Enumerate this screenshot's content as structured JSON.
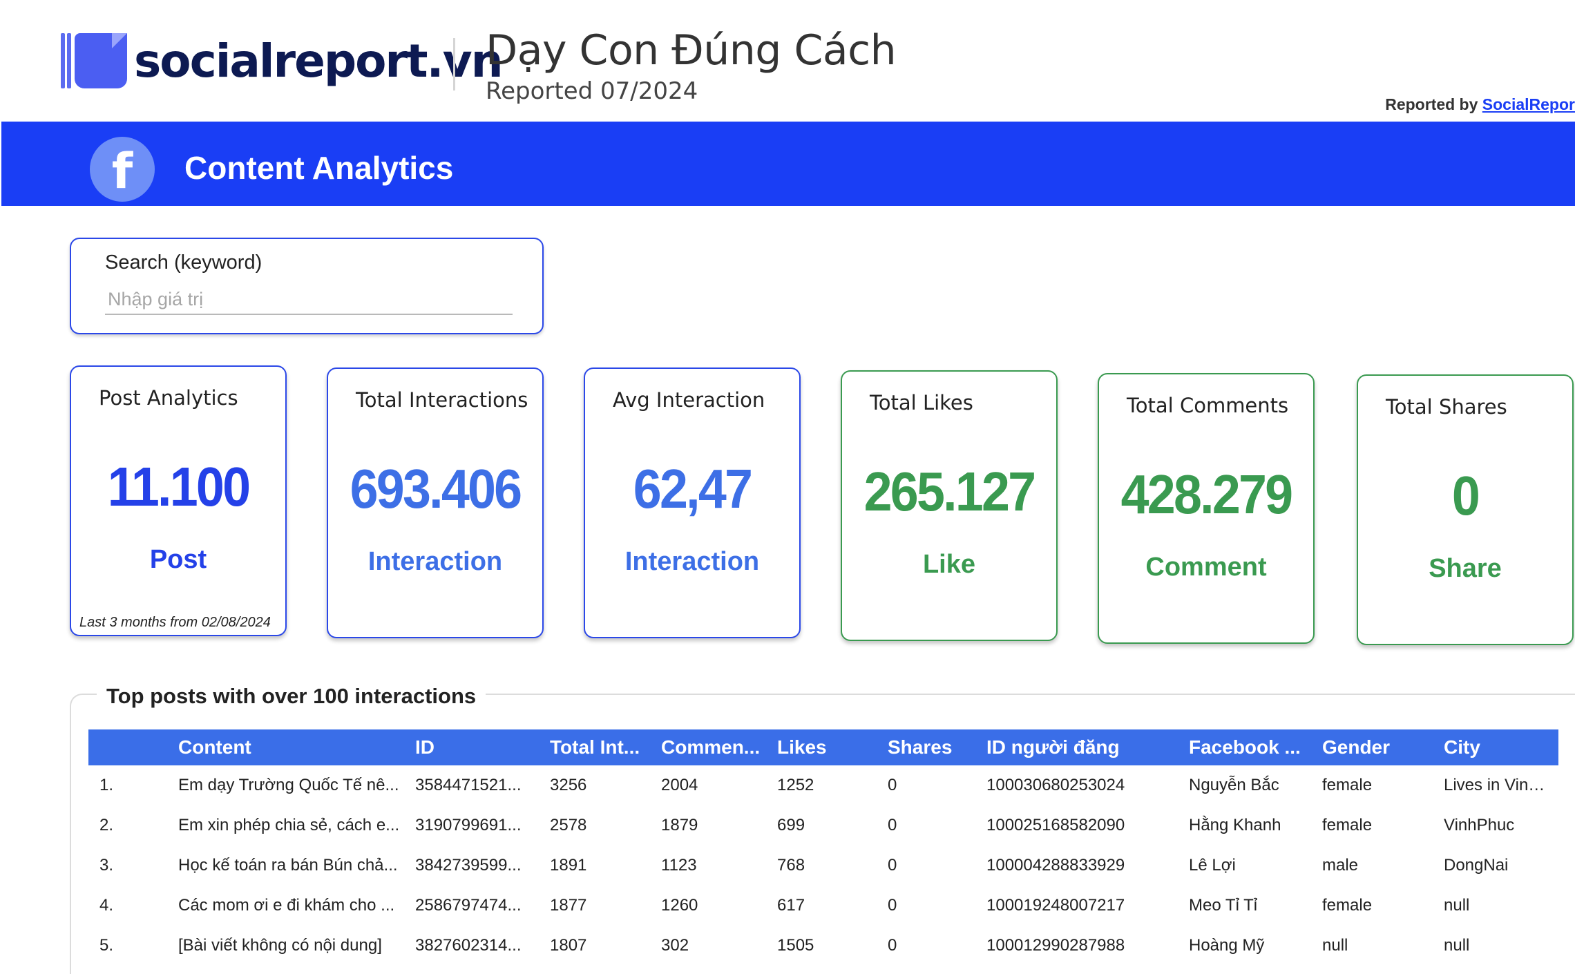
{
  "header": {
    "logo_text": "socialreport.vn",
    "title": "Dạy Con Đúng Cách",
    "subtitle": "Reported 07/2024",
    "reported_by_prefix": "Reported by",
    "reported_by_link": "SocialRepor"
  },
  "banner": {
    "icon": "facebook-icon",
    "icon_glyph": "f",
    "title": "Content Analytics"
  },
  "search": {
    "label": "Search (keyword)",
    "placeholder": "Nhập giá trị",
    "value": ""
  },
  "cards": [
    {
      "title": "Post Analytics",
      "value": "11.100",
      "unit": "Post",
      "note": "Last 3 months from 02/08/2024",
      "color": "#2441e8"
    },
    {
      "title": "Total Interactions",
      "value": "693.406",
      "unit": "Interaction",
      "color": "#3d6fe6"
    },
    {
      "title": "Avg Interaction",
      "value": "62,47",
      "unit": "Interaction",
      "color": "#3d6fe6"
    },
    {
      "title": "Total Likes",
      "value": "265.127",
      "unit": "Like",
      "color": "#3a9a50"
    },
    {
      "title": "Total Comments",
      "value": "428.279",
      "unit": "Comment",
      "color": "#3a9a50"
    },
    {
      "title": "Total Shares",
      "value": "0",
      "unit": "Share",
      "color": "#3a9a50"
    }
  ],
  "table": {
    "title": "Top posts with over 100 interactions",
    "header_color": "#3a6ee8",
    "columns": [
      "",
      "Content",
      "ID",
      "Total Int...",
      "Commen...",
      "Likes",
      "Shares",
      "ID người đăng",
      "Facebook ...",
      "Gender",
      "City"
    ],
    "rows": [
      [
        "1.",
        "Em dạy Trường Quốc Tế nê...",
        "3584471521...",
        "3256",
        "2004",
        "1252",
        "0",
        "100030680253024",
        "Nguyễn Bắc",
        "female",
        "Lives in Vinh..."
      ],
      [
        "2.",
        "Em xin phép chia sẻ, cách e...",
        "3190799691...",
        "2578",
        "1879",
        "699",
        "0",
        "100025168582090",
        "Hằng Khanh",
        "female",
        "VinhPhuc"
      ],
      [
        "3.",
        "Học kế toán ra bán Bún chả...",
        "3842739599...",
        "1891",
        "1123",
        "768",
        "0",
        "100004288833929",
        "Lê Lợi",
        "male",
        "DongNai"
      ],
      [
        "4.",
        "Các mom ơi e đi khám cho ...",
        "2586797474...",
        "1877",
        "1260",
        "617",
        "0",
        "100019248007217",
        "Meo Tỉ Tỉ",
        "female",
        "null"
      ],
      [
        "5.",
        "[Bài viết không có nội dung]",
        "3827602314...",
        "1807",
        "302",
        "1505",
        "0",
        "100012990287988",
        "Hoàng Mỹ",
        "null",
        "null"
      ]
    ]
  }
}
